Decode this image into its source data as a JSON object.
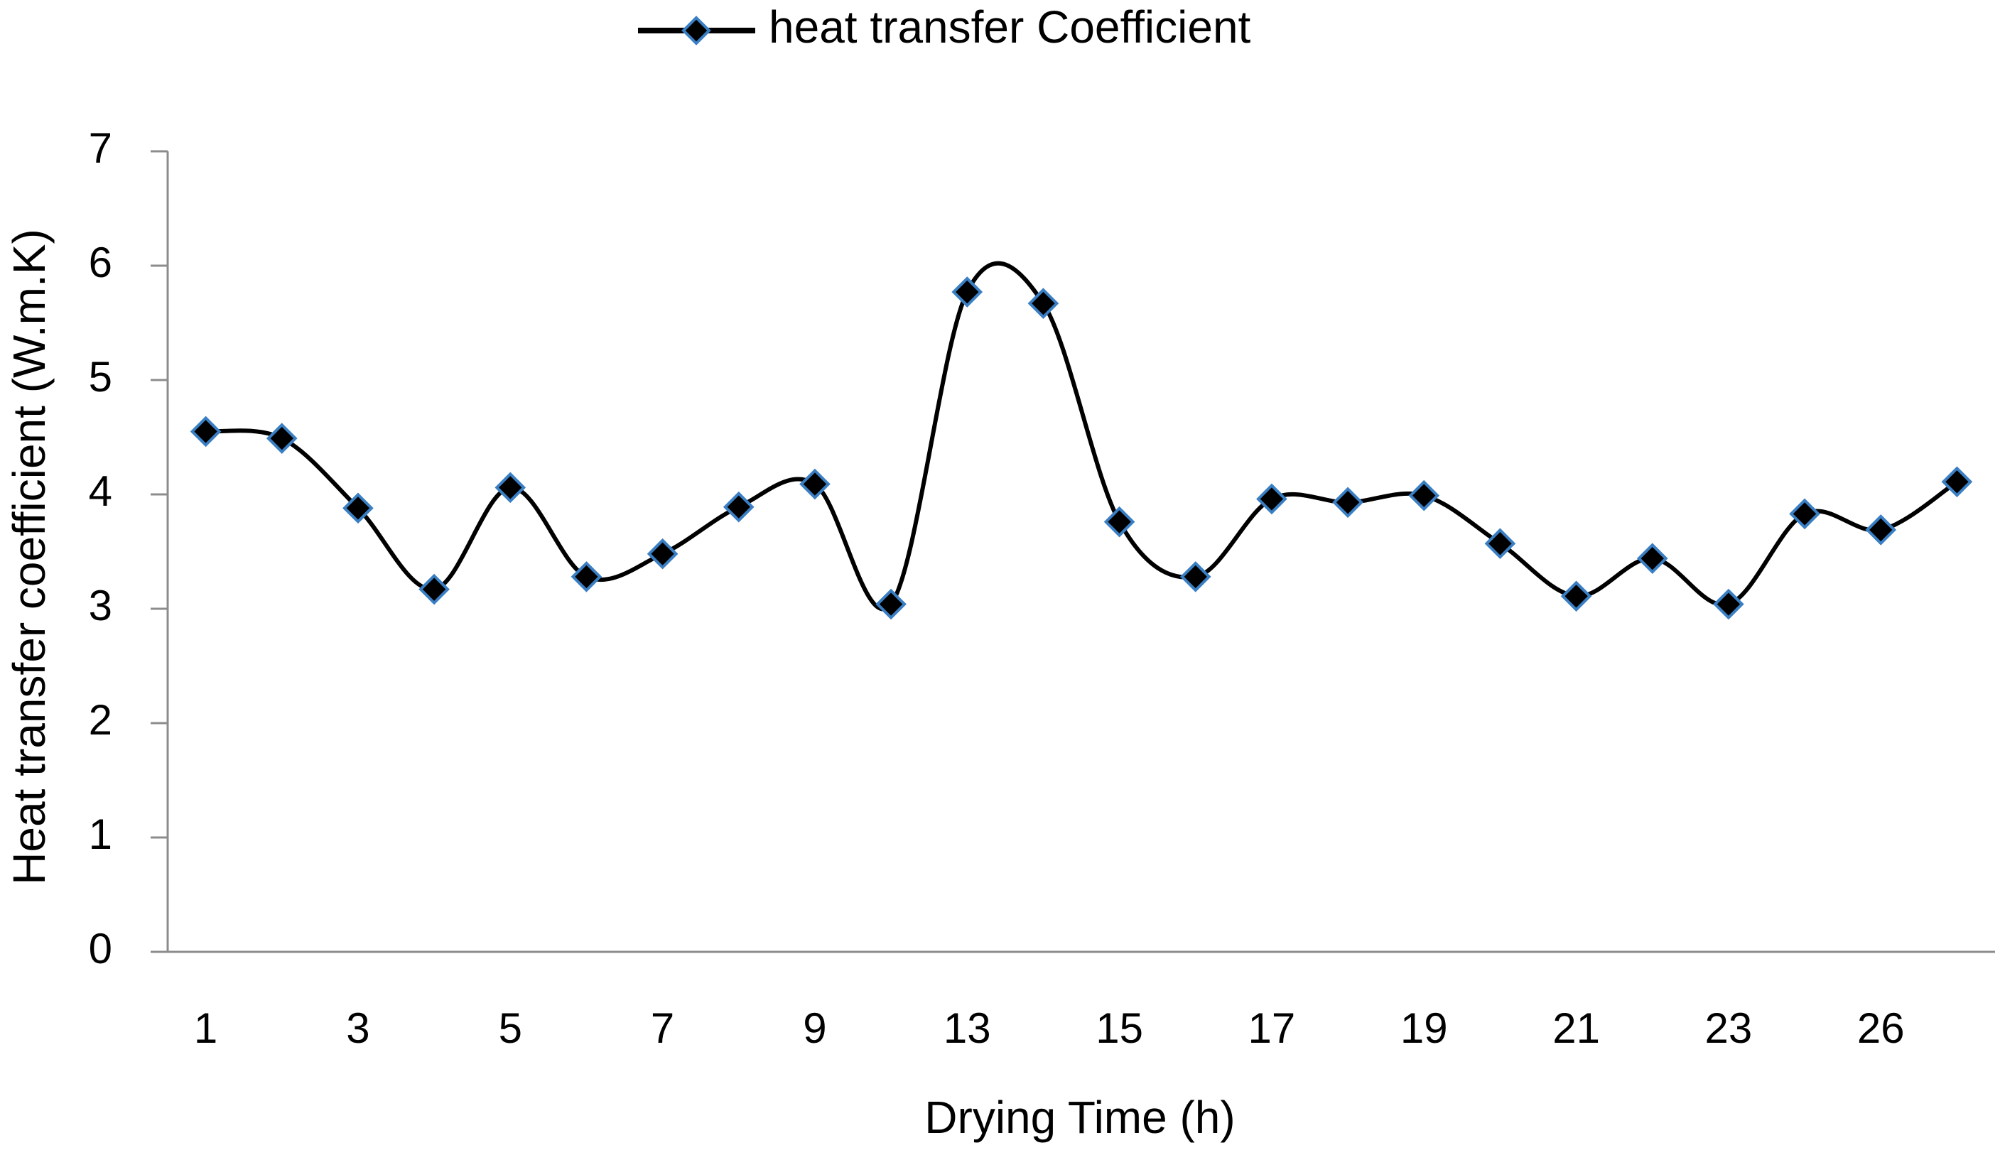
{
  "chart_data": {
    "type": "line",
    "title": "",
    "xlabel": "Drying Time (h)",
    "ylabel": "Heat  transfer coefficient (W.m.K)",
    "ylim": [
      0,
      7
    ],
    "yticks": [
      "0",
      "1",
      "2",
      "3",
      "4",
      "5",
      "6",
      "7"
    ],
    "x_tick_labels": [
      "1",
      "3",
      "5",
      "7",
      "9",
      "13",
      "15",
      "17",
      "19",
      "21",
      "23",
      "26"
    ],
    "grid": false,
    "legend_position": "top-center",
    "smooth": true,
    "series": [
      {
        "name": "heat transfer Coefficient",
        "line_color": "#000000",
        "marker": "diamond",
        "marker_fill": "#000000",
        "marker_edge": "#3a7fc4",
        "values": [
          4.55,
          4.49,
          3.88,
          3.17,
          4.06,
          3.28,
          3.48,
          3.89,
          4.09,
          3.04,
          5.77,
          5.67,
          3.76,
          3.28,
          3.96,
          3.93,
          3.99,
          3.57,
          3.11,
          3.44,
          3.04,
          3.83,
          3.69,
          4.11
        ]
      }
    ]
  }
}
